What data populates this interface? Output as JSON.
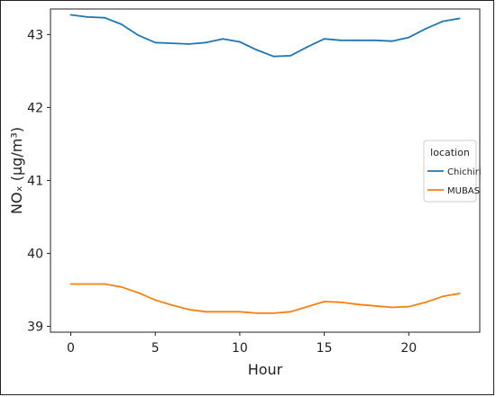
{
  "chart_data": {
    "type": "line",
    "title": "",
    "xlabel": "Hour",
    "ylabel": "NOₓ (μg/m³)",
    "xlim": [
      -1.2,
      24.2
    ],
    "ylim": [
      38.92,
      43.35
    ],
    "xticks": [
      0,
      5,
      10,
      15,
      20
    ],
    "yticks": [
      39,
      40,
      41,
      42,
      43
    ],
    "grid": false,
    "legend": {
      "title": "location",
      "position": "right"
    },
    "x": [
      0,
      1,
      2,
      3,
      4,
      5,
      6,
      7,
      8,
      9,
      10,
      11,
      12,
      13,
      14,
      15,
      16,
      17,
      18,
      19,
      20,
      21,
      22,
      23
    ],
    "series": [
      {
        "name": "Chichiri",
        "color": "#1f77b4",
        "values": [
          43.27,
          43.24,
          43.23,
          43.14,
          42.99,
          42.89,
          42.88,
          42.87,
          42.89,
          42.94,
          42.9,
          42.79,
          42.7,
          42.71,
          42.83,
          42.94,
          42.92,
          42.92,
          42.92,
          42.91,
          42.96,
          43.08,
          43.18,
          43.22
        ]
      },
      {
        "name": "MUBAS",
        "color": "#ff7f0e",
        "values": [
          39.58,
          39.58,
          39.58,
          39.54,
          39.46,
          39.36,
          39.29,
          39.23,
          39.2,
          39.2,
          39.2,
          39.18,
          39.18,
          39.2,
          39.27,
          39.34,
          39.33,
          39.3,
          39.28,
          39.26,
          39.27,
          39.33,
          39.41,
          39.45
        ]
      }
    ]
  }
}
